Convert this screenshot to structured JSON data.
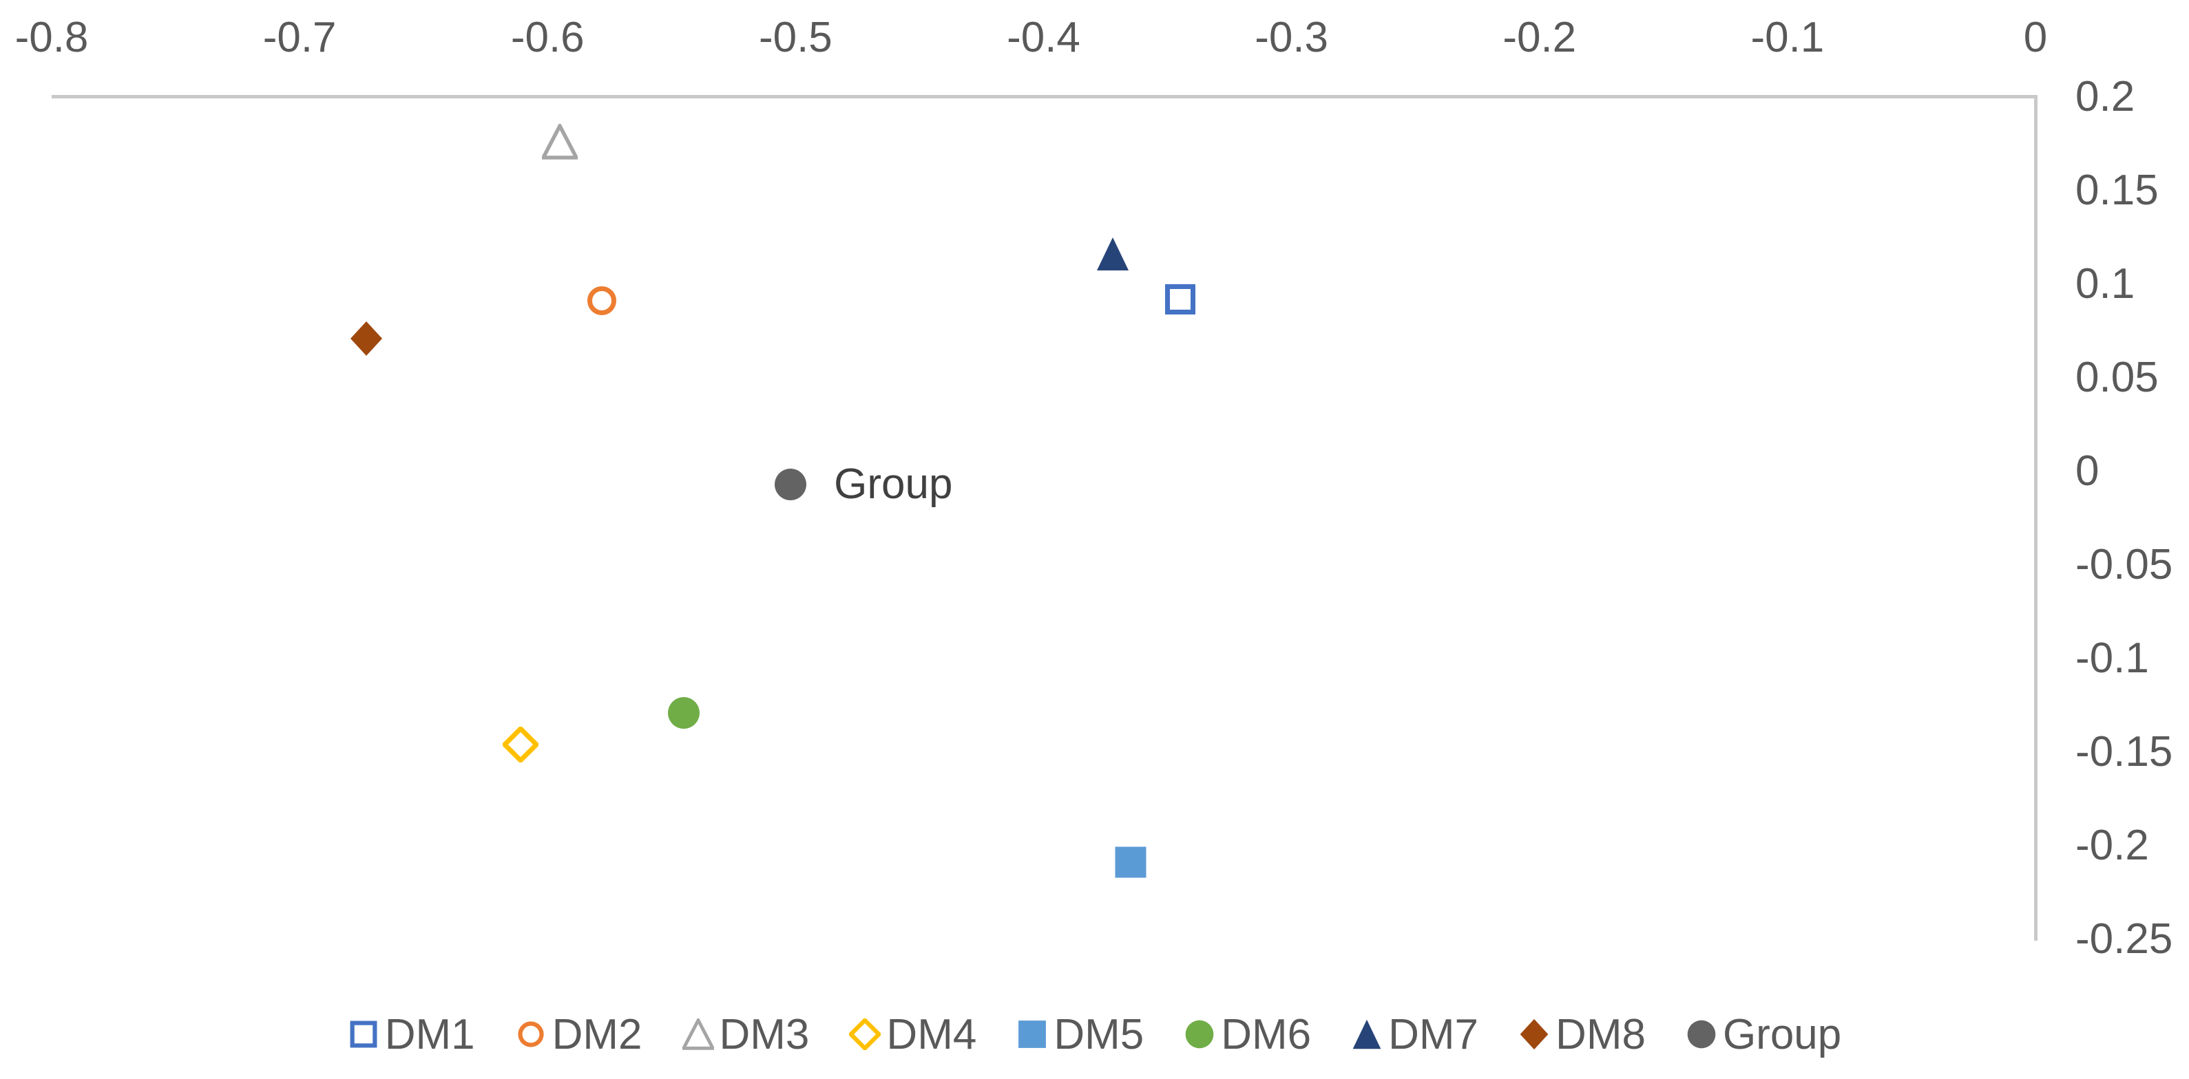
{
  "chart_data": {
    "type": "scatter",
    "x_axis": {
      "position": "top",
      "min": -0.8,
      "max": 0,
      "tick_labels": [
        "-0.8",
        "-0.7",
        "-0.6",
        "-0.5",
        "-0.4",
        "-0.3",
        "-0.2",
        "-0.1",
        "0"
      ]
    },
    "y_axis": {
      "position": "right",
      "min": -0.25,
      "max": 0.2,
      "tick_labels": [
        "0.2",
        "0.15",
        "0.1",
        "0.05",
        "0",
        "-0.05",
        "-0.1",
        "-0.15",
        "-0.2",
        "-0.25"
      ]
    },
    "grid": false,
    "series": [
      {
        "name": "DM1",
        "marker": "square-open",
        "color": "#4472C4",
        "x": -0.345,
        "y": 0.092
      },
      {
        "name": "DM2",
        "marker": "circle-open",
        "color": "#ED7D31",
        "x": -0.578,
        "y": 0.091
      },
      {
        "name": "DM3",
        "marker": "triangle-open",
        "color": "#A5A5A5",
        "x": -0.595,
        "y": 0.176
      },
      {
        "name": "DM4",
        "marker": "diamond-open",
        "color": "#FFC000",
        "x": -0.611,
        "y": -0.146
      },
      {
        "name": "DM5",
        "marker": "square-filled",
        "color": "#5B9BD5",
        "x": -0.365,
        "y": -0.209
      },
      {
        "name": "DM6",
        "marker": "circle-filled",
        "color": "#70AD47",
        "x": -0.545,
        "y": -0.129
      },
      {
        "name": "DM7",
        "marker": "triangle-filled",
        "color": "#264478",
        "x": -0.372,
        "y": 0.116
      },
      {
        "name": "DM8",
        "marker": "diamond-filled",
        "color": "#9E480E",
        "x": -0.673,
        "y": 0.071
      },
      {
        "name": "Group",
        "marker": "circle-filled",
        "color": "#636363",
        "x": -0.502,
        "y": -0.007,
        "data_label": "Group"
      }
    ],
    "legend": {
      "position": "bottom",
      "entries": [
        "DM1",
        "DM2",
        "DM3",
        "DM4",
        "DM5",
        "DM6",
        "DM7",
        "DM8",
        "Group"
      ]
    },
    "colors": {
      "axis_line": "#c9c9c9",
      "tick_label": "#595959",
      "legend_label": "#595959",
      "data_label": "#404040"
    }
  }
}
